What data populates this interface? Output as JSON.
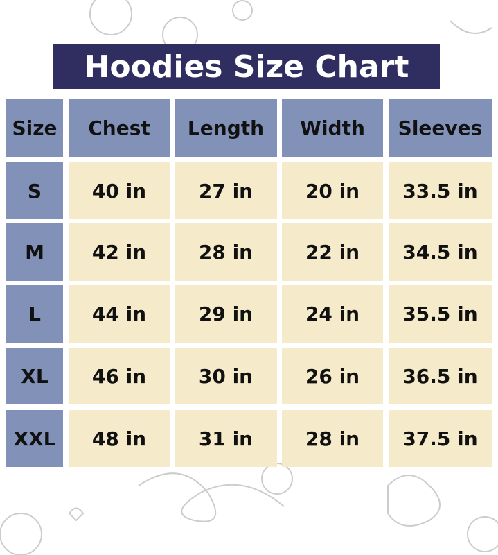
{
  "title": "Hoodies Size Chart",
  "colors": {
    "title_bg": "#302e60",
    "header_bg": "#8191b8",
    "cell_bg": "#f5ebca"
  },
  "headers": [
    "Size",
    "Chest",
    "Length",
    "Width",
    "Sleeves"
  ],
  "rows": [
    [
      "S",
      "40 in",
      "27 in",
      "20 in",
      "33.5 in"
    ],
    [
      "M",
      "42 in",
      "28 in",
      "22 in",
      "34.5 in"
    ],
    [
      "L",
      "44 in",
      "29 in",
      "24 in",
      "35.5 in"
    ],
    [
      "XL",
      "46 in",
      "30 in",
      "26 in",
      "36.5 in"
    ],
    [
      "XXL",
      "48 in",
      "31 in",
      "28 in",
      "37.5 in"
    ]
  ]
}
